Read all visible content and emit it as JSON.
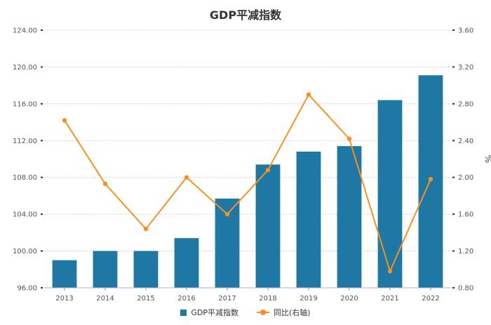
{
  "chart_data": {
    "type": "bar",
    "title": "GDP平减指数",
    "categories": [
      "2013",
      "2014",
      "2015",
      "2016",
      "2017",
      "2018",
      "2019",
      "2020",
      "2021",
      "2022"
    ],
    "series": [
      {
        "name": "GDP平减指数",
        "type": "bar",
        "axis": "left",
        "color": "#1f77a4",
        "values": [
          99.0,
          100.0,
          100.0,
          101.4,
          105.7,
          109.4,
          110.8,
          111.4,
          116.4,
          119.1
        ]
      },
      {
        "name": "同比(右轴)",
        "type": "line",
        "axis": "right",
        "color": "#f39222",
        "values": [
          2.62,
          1.93,
          1.44,
          2.0,
          1.6,
          2.08,
          2.9,
          2.42,
          0.98,
          1.98
        ]
      }
    ],
    "ylim_left": [
      96,
      124
    ],
    "yticks_left": [
      "96.00",
      "100.00",
      "104.00",
      "108.00",
      "112.00",
      "116.00",
      "120.00",
      "124.00"
    ],
    "ylim_right": [
      0.8,
      3.6
    ],
    "yticks_right": [
      "0.80",
      "1.20",
      "1.60",
      "2.00",
      "2.40",
      "2.80",
      "3.20",
      "3.60"
    ],
    "ylabel_right": "%",
    "grid": true,
    "legend_position": "bottom"
  }
}
